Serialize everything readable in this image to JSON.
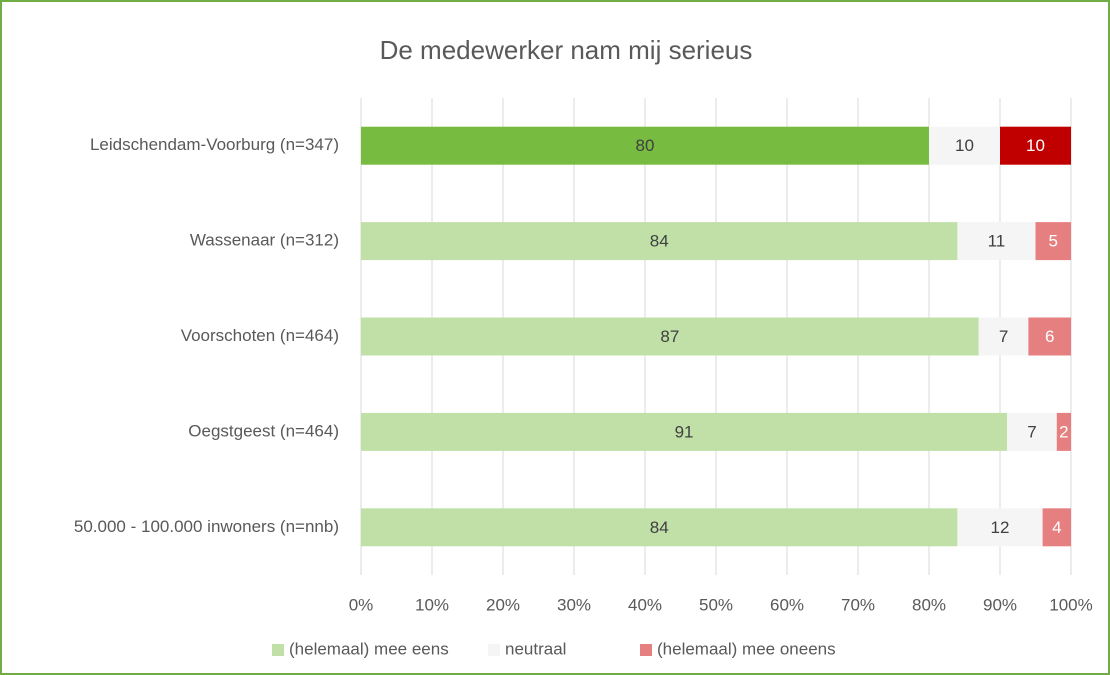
{
  "chart_data": {
    "type": "bar",
    "orientation": "horizontal",
    "stacked": true,
    "title": "De medewerker nam mij serieus",
    "categories": [
      "Leidschendam-Voorburg (n=347)",
      "Wassenaar (n=312)",
      "Voorschoten (n=464)",
      "Oegstgeest (n=464)",
      "50.000 - 100.000 inwoners (n=nnb)"
    ],
    "series": [
      {
        "name": "(helemaal) mee eens",
        "color": "#c0e0a7",
        "colors": [
          "#77bc41",
          "#c0e0a7",
          "#c0e0a7",
          "#c0e0a7",
          "#c0e0a7"
        ],
        "label_color": "#404040",
        "values": [
          80,
          84,
          87,
          91,
          84
        ]
      },
      {
        "name": "neutraal",
        "color": "#f5f5f5",
        "colors": [
          "#f5f5f5",
          "#f5f5f5",
          "#f5f5f5",
          "#f5f5f5",
          "#f5f5f5"
        ],
        "label_color": "#404040",
        "values": [
          10,
          11,
          7,
          7,
          12
        ]
      },
      {
        "name": "(helemaal) mee oneens",
        "color": "#e67f80",
        "colors": [
          "#c00000",
          "#e67f80",
          "#e67f80",
          "#e67f80",
          "#e67f80"
        ],
        "label_color": "#ffffff",
        "values": [
          10,
          5,
          6,
          2,
          4
        ]
      }
    ],
    "xlim": [
      0,
      100
    ],
    "xticks": [
      {
        "value": 0,
        "label": "0%"
      },
      {
        "value": 10,
        "label": "10%"
      },
      {
        "value": 20,
        "label": "20%"
      },
      {
        "value": 30,
        "label": "30%"
      },
      {
        "value": 40,
        "label": "40%"
      },
      {
        "value": 50,
        "label": "50%"
      },
      {
        "value": 60,
        "label": "60%"
      },
      {
        "value": 70,
        "label": "70%"
      },
      {
        "value": 80,
        "label": "80%"
      },
      {
        "value": 90,
        "label": "90%"
      },
      {
        "value": 100,
        "label": "100%"
      }
    ],
    "grid": true,
    "legend": "bottom"
  }
}
